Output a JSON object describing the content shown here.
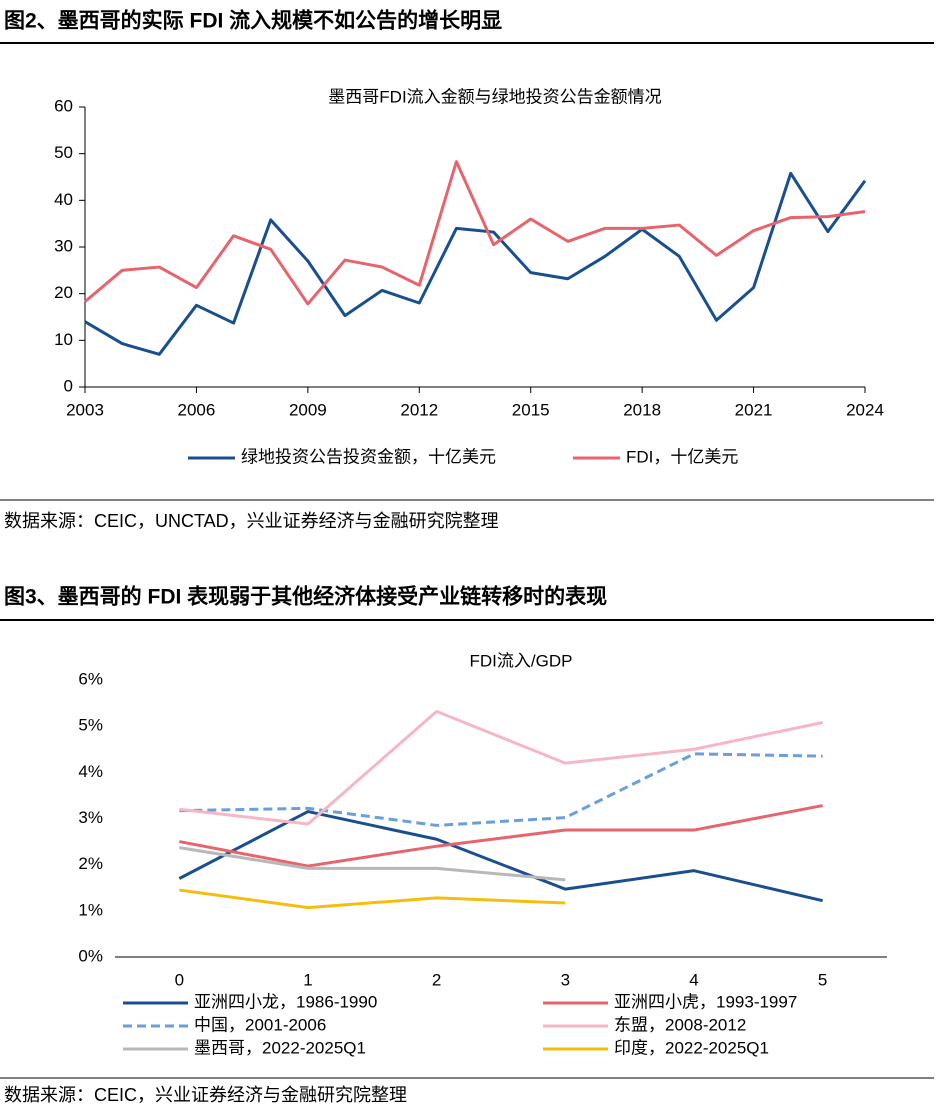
{
  "figures": [
    {
      "heading": "图2、墨西哥的实际 FDI 流入规模不如公告的增长明显",
      "source": "数据来源：CEIC，UNCTAD，兴业证券经济与金融研究院整理"
    },
    {
      "heading": "图3、墨西哥的 FDI 表现弱于其他经济体接受产业链转移时的表现",
      "source": "数据来源：CEIC，兴业证券经济与金融研究院整理"
    }
  ],
  "chart_data": [
    {
      "type": "line",
      "title": "墨西哥FDI流入金额与绿地投资公告金额情况",
      "x": [
        2003,
        2004,
        2005,
        2006,
        2007,
        2008,
        2009,
        2010,
        2011,
        2012,
        2013,
        2014,
        2015,
        2016,
        2017,
        2018,
        2019,
        2020,
        2021,
        2022,
        2023,
        2024
      ],
      "xlim": [
        2003,
        2024
      ],
      "xticks": [
        2003,
        2006,
        2009,
        2012,
        2015,
        2018,
        2021,
        2024
      ],
      "ylim": [
        0,
        60
      ],
      "yticks": [
        0,
        10,
        20,
        30,
        40,
        50,
        60
      ],
      "grid": false,
      "legend": "bottom",
      "series": [
        {
          "name": "绿地投资公告投资金额，十亿美元",
          "color": "#1a4f8f",
          "values": [
            14,
            9.3,
            7,
            17.5,
            13.7,
            35.8,
            27,
            15.3,
            20.7,
            18,
            34,
            33.2,
            24.5,
            23.2,
            28,
            33.8,
            28,
            14.3,
            21.3,
            45.8,
            33.3,
            44.2
          ]
        },
        {
          "name": "FDI，十亿美元",
          "color": "#e8646c",
          "values": [
            18.3,
            25,
            25.7,
            21.3,
            32.4,
            29.5,
            17.8,
            27.2,
            25.7,
            21.8,
            48.3,
            30.5,
            36,
            31.2,
            34,
            34,
            34.7,
            28.2,
            33.5,
            36.3,
            36.5,
            37.6
          ]
        }
      ]
    },
    {
      "type": "line",
      "title": "FDI流入/GDP",
      "x": [
        0,
        1,
        2,
        3,
        4,
        5
      ],
      "xlim": [
        -0.5,
        5.5
      ],
      "xticks": [
        0,
        1,
        2,
        3,
        4,
        5
      ],
      "ylim": [
        0,
        6
      ],
      "yticks": [
        {
          "value": 0,
          "label": "0%"
        },
        {
          "value": 1,
          "label": "1%"
        },
        {
          "value": 2,
          "label": "2%"
        },
        {
          "value": 3,
          "label": "3%"
        },
        {
          "value": 4,
          "label": "4%"
        },
        {
          "value": 5,
          "label": "5%"
        },
        {
          "value": 6,
          "label": "6%"
        }
      ],
      "grid": false,
      "legend": "bottom",
      "series": [
        {
          "name": "亚洲四小龙，1986-1990",
          "color": "#1a4f8f",
          "values": [
            1.7,
            3.15,
            2.55,
            1.47,
            1.87,
            1.22
          ]
        },
        {
          "name": "亚洲四小虎，1993-1997",
          "color": "#e8646c",
          "values": [
            2.5,
            1.97,
            2.4,
            2.75,
            2.75,
            3.28
          ]
        },
        {
          "name": "中国，2001-2006",
          "color": "#6a9fdc",
          "dash": true,
          "values": [
            3.17,
            3.22,
            2.85,
            3.02,
            4.4,
            4.35
          ]
        },
        {
          "name": "东盟，2008-2012",
          "color": "#f7b6c6",
          "values": [
            3.2,
            2.88,
            5.32,
            4.2,
            4.5,
            5.08
          ]
        },
        {
          "name": "墨西哥，2022-2025Q1",
          "color": "#b8b8b8",
          "values": [
            2.37,
            1.92,
            1.92,
            1.67,
            null,
            null
          ]
        },
        {
          "name": "印度，2022-2025Q1",
          "color": "#f5be0f",
          "values": [
            1.45,
            1.07,
            1.28,
            1.17,
            null,
            null
          ]
        }
      ]
    }
  ]
}
